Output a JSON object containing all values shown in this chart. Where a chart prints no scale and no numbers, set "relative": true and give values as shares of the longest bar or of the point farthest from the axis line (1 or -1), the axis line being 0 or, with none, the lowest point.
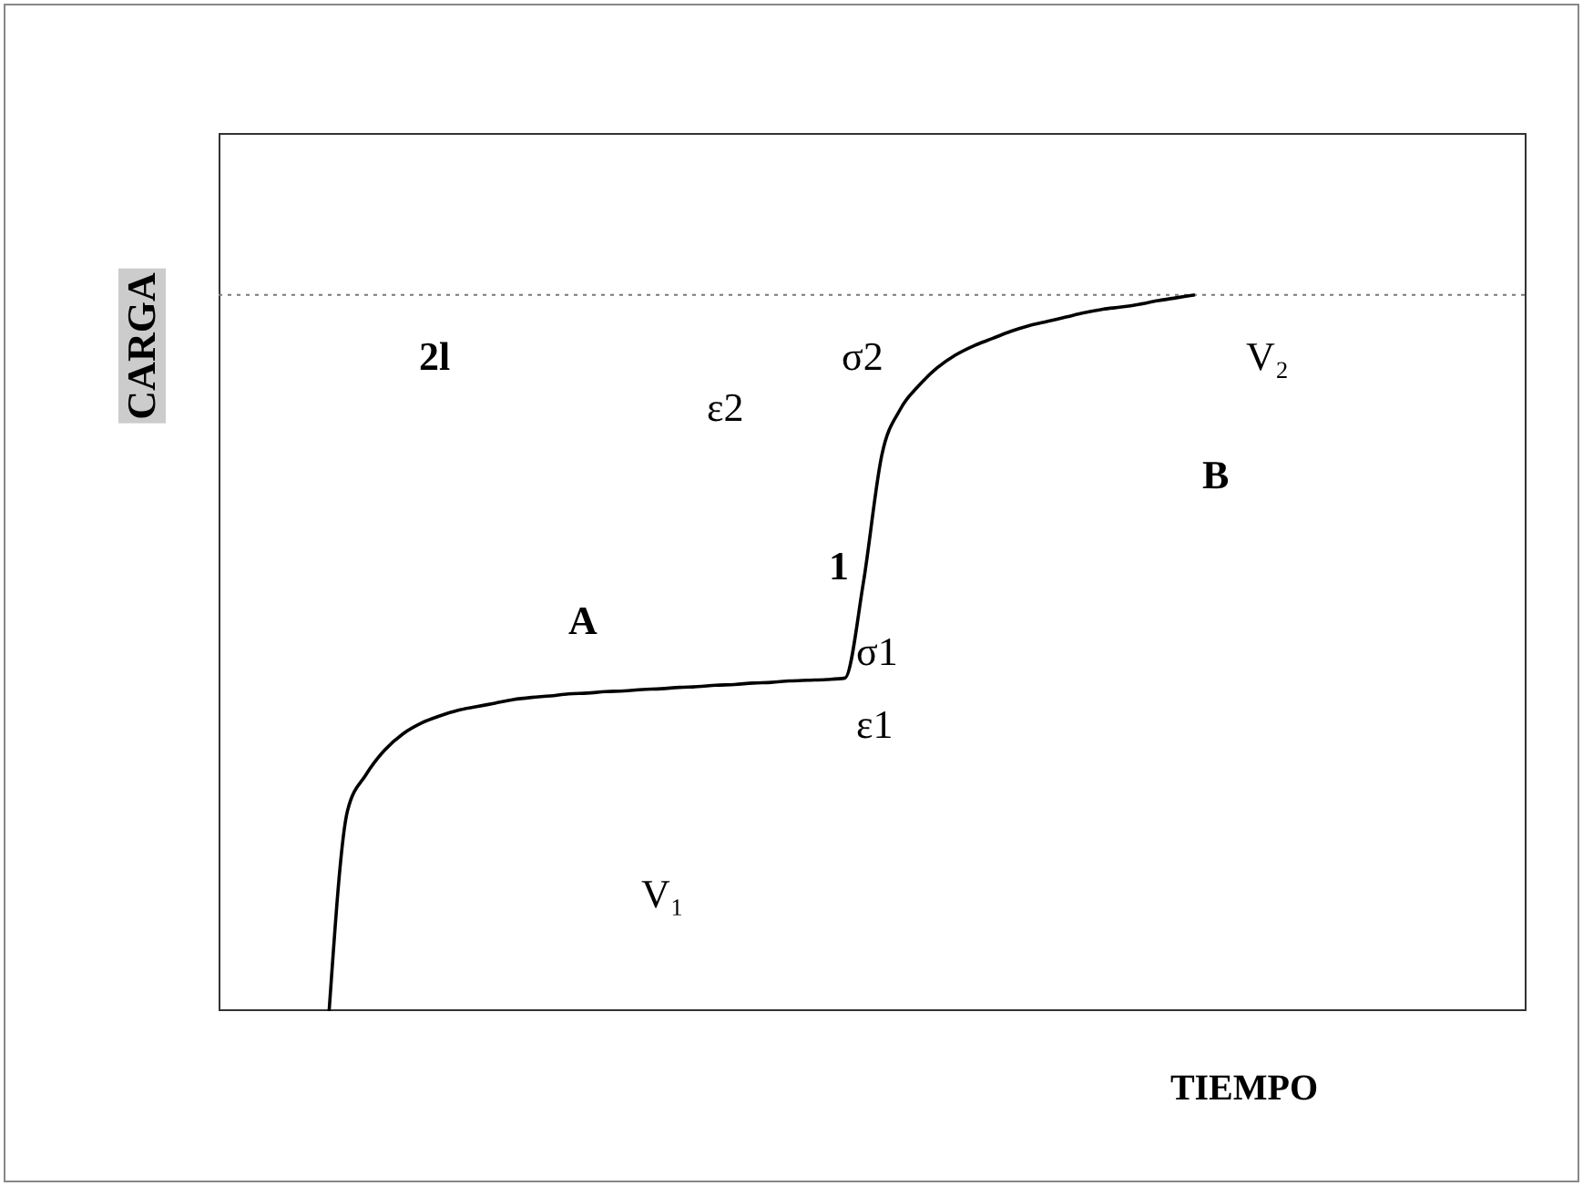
{
  "chart_data": {
    "type": "line",
    "relative": true,
    "xlabel": "TIEMPO",
    "ylabel": "CARGA",
    "marker": "none",
    "line_style": "solid",
    "categories": [
      null,
      null,
      null,
      null,
      null,
      null,
      null,
      null,
      null,
      null,
      null,
      null,
      null,
      null,
      null,
      null,
      null,
      null,
      null,
      null,
      null,
      null,
      null,
      null,
      null,
      null,
      null,
      null,
      null,
      null,
      null,
      null,
      null,
      null,
      null,
      null,
      null,
      null,
      null,
      null,
      null,
      null,
      null,
      null,
      null,
      null,
      null,
      null,
      null,
      null,
      null,
      null,
      null,
      null,
      null,
      null,
      null,
      null,
      null,
      null,
      null,
      null,
      null,
      null,
      null,
      null,
      null,
      null,
      null,
      null,
      null,
      null
    ],
    "series": [
      {
        "color": "#000000",
        "values": [
          null,
          null,
          null,
          null,
          null,
          null,
          0,
          0.28,
          0.33,
          0.364,
          0.387,
          0.402,
          0.412,
          0.42,
          0.425,
          0.43,
          0.435,
          0.438,
          0.44,
          0.443,
          0.444,
          0.446,
          0.447,
          0.449,
          0.45,
          0.452,
          0.453,
          0.455,
          0.456,
          0.458,
          0.459,
          0.461,
          0.462,
          0.463,
          0.465,
          0.598,
          0.776,
          0.84,
          0.873,
          0.898,
          0.916,
          0.929,
          0.939,
          0.949,
          0.957,
          0.963,
          0.969,
          0.975,
          0.98,
          0.983,
          0.987,
          0.992,
          0.996,
          1,
          null,
          null,
          null,
          null,
          null,
          null,
          null,
          null,
          null,
          null,
          null,
          null,
          null,
          null,
          null,
          null,
          null,
          null
        ]
      }
    ],
    "ref_lines": [
      {
        "axis": "y",
        "value": 1,
        "line_style": "dotted",
        "color": "#777777"
      }
    ],
    "annotations": [
      "2l",
      "σ2",
      "V₂",
      "ε2",
      "B",
      "A",
      "1",
      "σ1",
      "ε1",
      "V₁"
    ]
  }
}
